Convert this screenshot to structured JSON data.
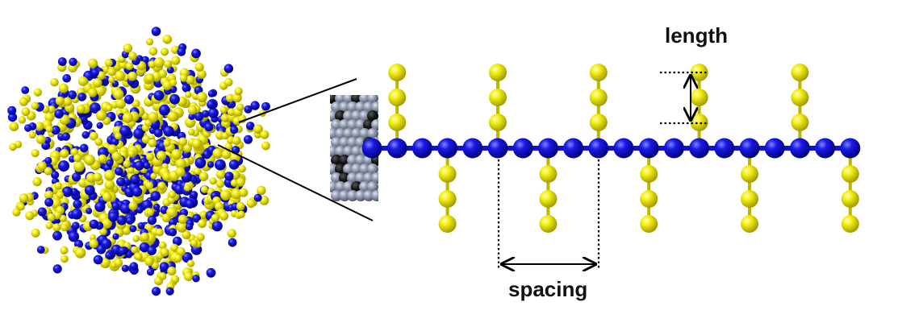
{
  "diagram": {
    "labels": {
      "length": "length",
      "spacing": "spacing"
    },
    "colors": {
      "backbone_bead": "#1010d8",
      "backbone_bead_dark": "#00007a",
      "side_chain_bead": "#f2ee0a",
      "side_chain_bead_dark": "#a8a200",
      "core_bead": "#8d97a8",
      "core_bead_dark": "#101010",
      "annotation_line": "#000000"
    },
    "structure": {
      "backbone_bead_count": 20,
      "side_chain_count": 10,
      "side_chain_length_beads": 3,
      "side_chain_spacing_beads": 4,
      "side_chain_sides": [
        "up",
        "down",
        "up",
        "down",
        "up",
        "down",
        "up",
        "down",
        "up",
        "down"
      ]
    }
  }
}
